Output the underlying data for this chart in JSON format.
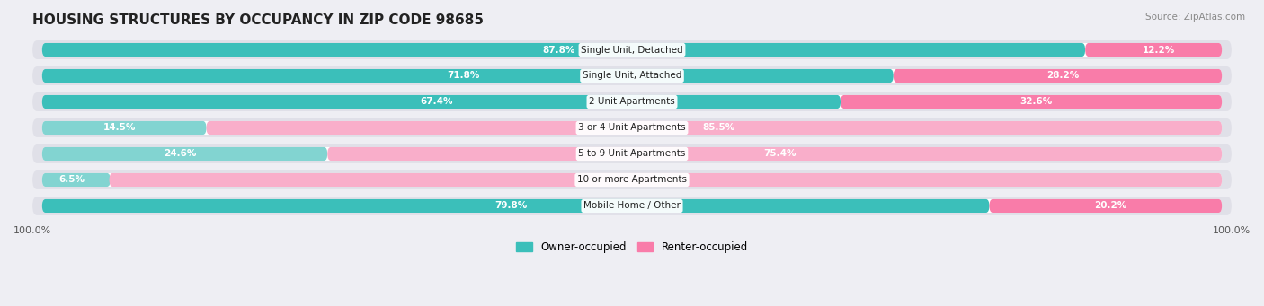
{
  "title": "HOUSING STRUCTURES BY OCCUPANCY IN ZIP CODE 98685",
  "source": "Source: ZipAtlas.com",
  "categories": [
    "Single Unit, Detached",
    "Single Unit, Attached",
    "2 Unit Apartments",
    "3 or 4 Unit Apartments",
    "5 to 9 Unit Apartments",
    "10 or more Apartments",
    "Mobile Home / Other"
  ],
  "owner_pct": [
    87.8,
    71.8,
    67.4,
    14.5,
    24.6,
    6.5,
    79.8
  ],
  "renter_pct": [
    12.2,
    28.2,
    32.6,
    85.5,
    75.4,
    93.6,
    20.2
  ],
  "owner_color": "#3BBFBA",
  "renter_color": "#F97CA9",
  "owner_color_light": "#82D4D1",
  "renter_color_light": "#F9AECA",
  "bg_color": "#EEEEF3",
  "row_bg": "#E0E0E8",
  "bar_bg": "#FFFFFF",
  "title_fontsize": 11,
  "label_fontsize": 7.5,
  "cat_fontsize": 7.5,
  "tick_fontsize": 8,
  "legend_fontsize": 8.5,
  "figsize": [
    14.06,
    3.41
  ]
}
